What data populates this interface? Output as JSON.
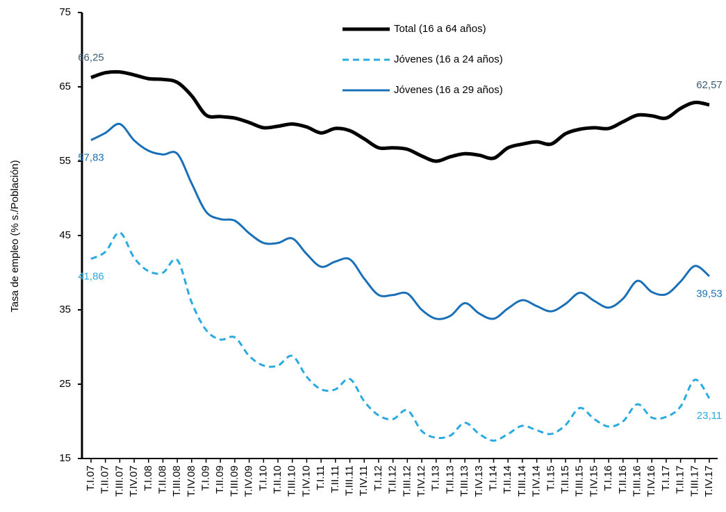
{
  "chart_data": {
    "type": "line",
    "y_label": "Tasa de empleo (% s./Población)",
    "categories": [
      "T.I.07",
      "T.II.07",
      "T.III.07",
      "T.IV.07",
      "T.I.08",
      "T.II.08",
      "T.III.08",
      "T.IV.08",
      "T.I.09",
      "T.II.09",
      "T.III.09",
      "T.IV.09",
      "T.I.10",
      "T.II.10",
      "T.III.10",
      "T.IV.10",
      "T.I.11",
      "T.II.11",
      "T.III.11",
      "T.IV.11",
      "T.I.12",
      "T.II.12",
      "T.III.12",
      "T.IV.12",
      "T.I.13",
      "T.II.13",
      "T.III.13",
      "T.IV.13",
      "T.I.14",
      "T.II.14",
      "T.III.14",
      "T.IV.14",
      "T.I.15",
      "T.II.15",
      "T.III.15",
      "T.IV.15",
      "T.I.16",
      "T.II.16",
      "T.III.16",
      "T.IV.16",
      "T.I.17",
      "T.II.17",
      "T.III.17",
      "T.IV.17"
    ],
    "series": [
      {
        "name": "Total (16 a 64 años)",
        "color": "#000000",
        "label_color": "#3b5a6e",
        "dashed": false,
        "values": [
          66.25,
          66.9,
          67.0,
          66.6,
          66.1,
          66.0,
          65.6,
          63.8,
          61.2,
          61.0,
          60.8,
          60.2,
          59.5,
          59.7,
          60.0,
          59.6,
          58.8,
          59.4,
          59.1,
          58.0,
          56.8,
          56.8,
          56.6,
          55.7,
          55.0,
          55.6,
          56.0,
          55.8,
          55.4,
          56.8,
          57.3,
          57.6,
          57.3,
          58.7,
          59.3,
          59.5,
          59.4,
          60.3,
          61.2,
          61.1,
          60.8,
          62.1,
          62.9,
          62.57
        ],
        "value_labels": [
          "66,25",
          null,
          null,
          null,
          null,
          null,
          null,
          null,
          null,
          null,
          null,
          null,
          null,
          null,
          null,
          null,
          null,
          null,
          null,
          null,
          null,
          null,
          null,
          null,
          null,
          null,
          null,
          null,
          null,
          null,
          null,
          null,
          null,
          null,
          null,
          null,
          null,
          null,
          null,
          null,
          null,
          null,
          null,
          "62,57"
        ]
      },
      {
        "name": "Jóvenes (16 a 24 años)",
        "color": "#29abe2",
        "label_color": "#29abe2",
        "dashed": true,
        "values": [
          41.86,
          42.8,
          45.4,
          42.0,
          40.2,
          40.0,
          41.7,
          36.0,
          32.3,
          31.0,
          31.3,
          28.8,
          27.5,
          27.5,
          28.8,
          26.0,
          24.3,
          24.3,
          25.7,
          22.7,
          20.8,
          20.3,
          21.5,
          18.7,
          17.8,
          18.1,
          19.8,
          18.3,
          17.4,
          18.3,
          19.4,
          18.8,
          18.3,
          19.5,
          21.8,
          20.3,
          19.3,
          20.0,
          22.3,
          20.5,
          20.6,
          22.0,
          25.6,
          23.11
        ],
        "value_labels": [
          "41,86",
          null,
          null,
          null,
          null,
          null,
          null,
          null,
          null,
          null,
          null,
          null,
          null,
          null,
          null,
          null,
          null,
          null,
          null,
          null,
          null,
          null,
          null,
          null,
          null,
          null,
          null,
          null,
          null,
          null,
          null,
          null,
          null,
          null,
          null,
          null,
          null,
          null,
          null,
          null,
          null,
          null,
          null,
          "23,11"
        ]
      },
      {
        "name": "Jóvenes (16 a 29 años)",
        "color": "#1a70b8",
        "label_color": "#1a70b8",
        "dashed": false,
        "values": [
          57.83,
          58.8,
          60.0,
          57.8,
          56.4,
          55.9,
          56.0,
          52.0,
          48.2,
          47.2,
          47.0,
          45.3,
          44.0,
          44.0,
          44.6,
          42.5,
          40.8,
          41.5,
          41.8,
          39.2,
          37.0,
          37.0,
          37.2,
          35.0,
          33.8,
          34.2,
          35.9,
          34.5,
          33.8,
          35.2,
          36.3,
          35.5,
          34.8,
          35.8,
          37.3,
          36.2,
          35.3,
          36.5,
          38.9,
          37.4,
          37.1,
          38.8,
          40.9,
          39.53
        ],
        "value_labels": [
          "57,83",
          null,
          null,
          null,
          null,
          null,
          null,
          null,
          null,
          null,
          null,
          null,
          null,
          null,
          null,
          null,
          null,
          null,
          null,
          null,
          null,
          null,
          null,
          null,
          null,
          null,
          null,
          null,
          null,
          null,
          null,
          null,
          null,
          null,
          null,
          null,
          null,
          null,
          null,
          null,
          null,
          null,
          null,
          "39,53"
        ]
      }
    ],
    "ylim": [
      15,
      75
    ],
    "yticks": [
      15,
      25,
      35,
      45,
      55,
      65,
      75
    ],
    "grid": false,
    "legend": "top"
  }
}
